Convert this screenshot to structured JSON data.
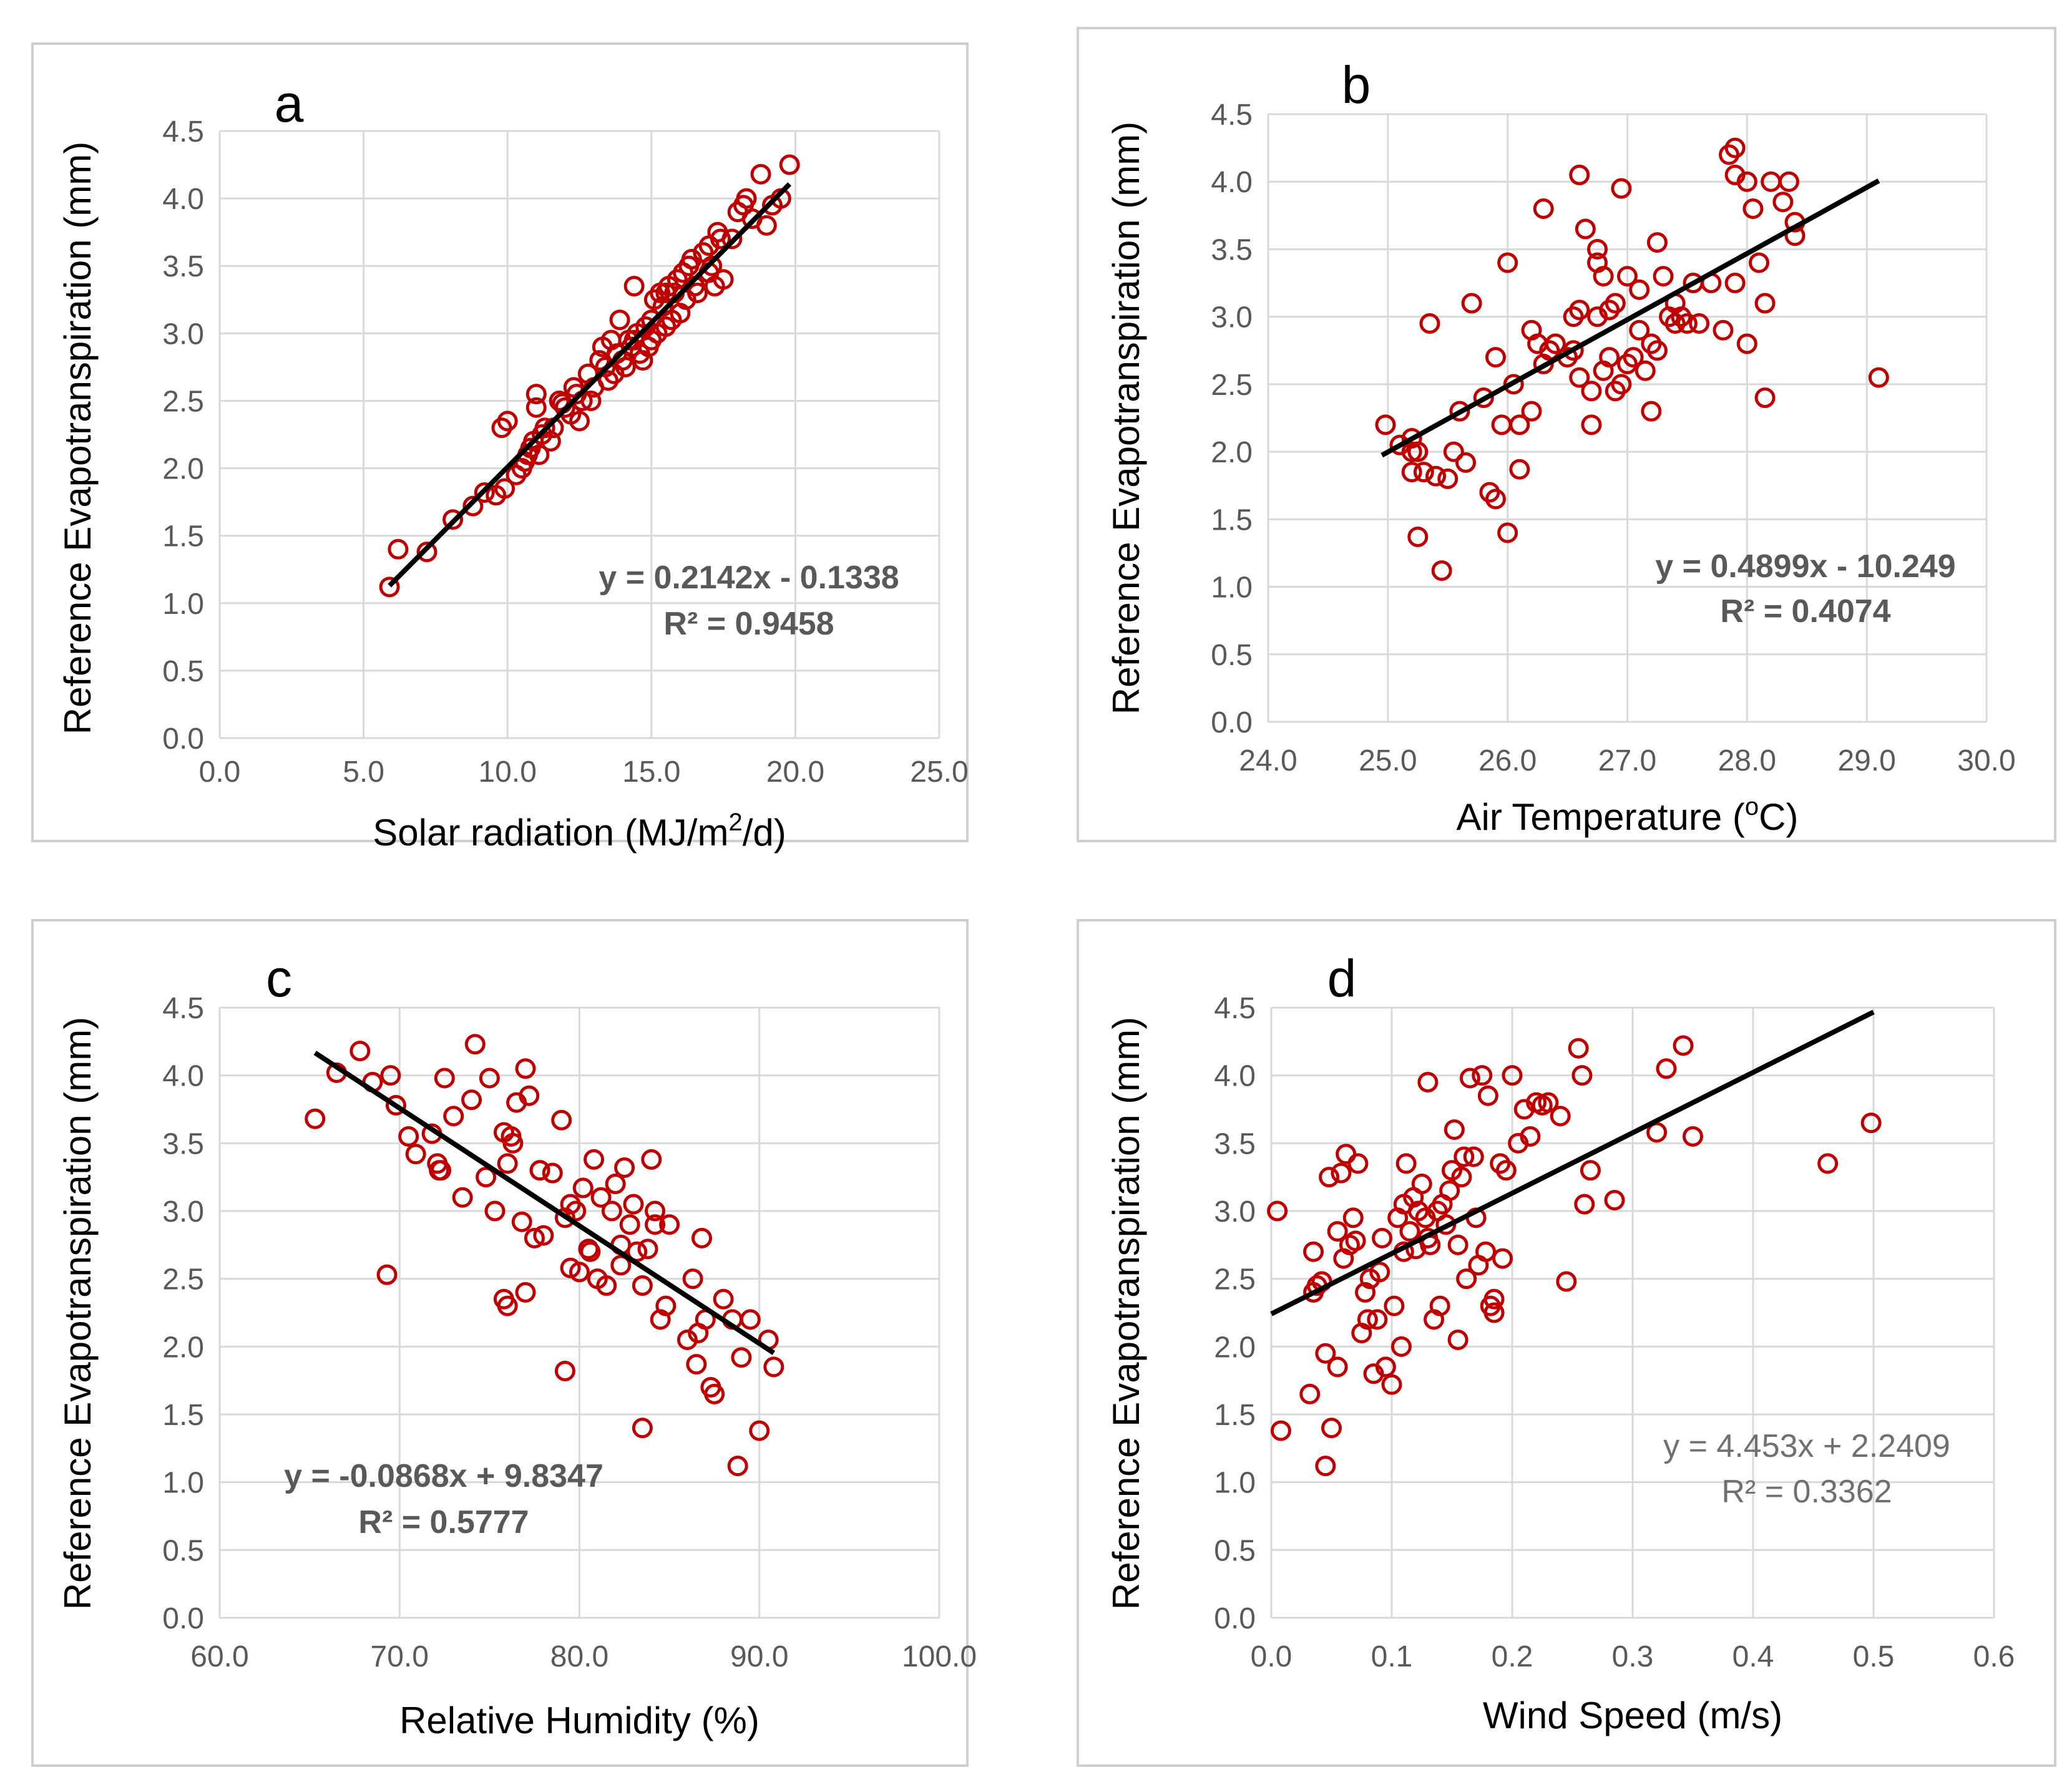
{
  "figure": {
    "accent_color": "#c00000",
    "trend_color": "#000000",
    "grid_color": "#d9d9d9"
  },
  "chart_data": [
    {
      "panel": "a",
      "type": "scatter",
      "title": "",
      "xlabel": "Solar radiation (MJ/m",
      "xlabel_sup": "2",
      "xlabel_post": "/d)",
      "ylabel": "Reference Evapotranspiration (mm)",
      "xlim": [
        0,
        25
      ],
      "ylim": [
        0,
        4.5
      ],
      "xticks": [
        "0.0",
        "5.0",
        "10.0",
        "15.0",
        "20.0",
        "25.0"
      ],
      "yticks": [
        "0.0",
        "0.5",
        "1.0",
        "1.5",
        "2.0",
        "2.5",
        "3.0",
        "3.5",
        "4.0",
        "4.5"
      ],
      "equation": "y = 0.2142x - 0.1338",
      "r2": "R² = 0.9458",
      "equation_bold": true,
      "trend": {
        "slope": 0.2142,
        "intercept": -0.1338,
        "x_range": [
          5.9,
          19.8
        ]
      },
      "x": [
        5.9,
        6.2,
        7.2,
        8.1,
        8.8,
        9.2,
        9.6,
        9.8,
        9.9,
        10.0,
        10.3,
        10.5,
        10.6,
        10.7,
        10.8,
        10.9,
        11.0,
        11.0,
        11.1,
        11.2,
        11.3,
        11.5,
        11.6,
        11.8,
        12.0,
        12.2,
        12.3,
        12.4,
        12.5,
        12.6,
        12.8,
        12.9,
        13.0,
        13.2,
        13.3,
        13.4,
        13.5,
        13.6,
        13.7,
        13.8,
        13.9,
        14.0,
        14.1,
        14.2,
        14.3,
        14.4,
        14.5,
        14.6,
        14.7,
        14.8,
        14.9,
        15.0,
        15.0,
        15.1,
        15.2,
        15.3,
        15.4,
        15.5,
        15.6,
        15.7,
        15.8,
        15.9,
        16.0,
        16.1,
        16.2,
        16.3,
        16.4,
        16.5,
        16.6,
        16.8,
        17.0,
        17.1,
        17.2,
        17.3,
        17.4,
        17.5,
        17.8,
        18.0,
        18.2,
        18.3,
        18.5,
        18.8,
        19.0,
        19.2,
        19.5,
        19.8,
        11.9,
        14.4,
        15.5,
        17.0
      ],
      "y": [
        1.12,
        1.4,
        1.38,
        1.62,
        1.72,
        1.82,
        1.8,
        2.3,
        1.85,
        2.35,
        1.95,
        2.0,
        2.05,
        2.1,
        2.15,
        2.2,
        2.45,
        2.55,
        2.1,
        2.25,
        2.3,
        2.2,
        2.3,
        2.5,
        2.45,
        2.4,
        2.6,
        2.55,
        2.35,
        2.5,
        2.7,
        2.5,
        2.6,
        2.8,
        2.9,
        2.75,
        2.65,
        2.95,
        2.7,
        2.85,
        3.1,
        2.8,
        2.75,
        2.95,
        2.9,
        3.35,
        3.0,
        2.85,
        2.8,
        3.05,
        2.9,
        3.1,
        2.95,
        3.25,
        3.0,
        3.3,
        3.2,
        3.05,
        3.35,
        3.1,
        3.3,
        3.4,
        3.15,
        3.45,
        3.25,
        3.5,
        3.55,
        3.35,
        3.3,
        3.6,
        3.45,
        3.5,
        3.35,
        3.75,
        3.7,
        3.4,
        3.7,
        3.9,
        3.95,
        4.0,
        3.85,
        4.18,
        3.8,
        3.95,
        4.0,
        4.25,
        2.48,
        2.95,
        3.3,
        3.65
      ]
    },
    {
      "panel": "b",
      "type": "scatter",
      "title": "",
      "xlabel": "Air Temperature (",
      "xlabel_sup": "o",
      "xlabel_post": "C)",
      "ylabel": "Reference Evapotranspiration (mm)",
      "xlim": [
        24,
        30
      ],
      "ylim": [
        0,
        4.5
      ],
      "xticks": [
        "24.0",
        "25.0",
        "26.0",
        "27.0",
        "28.0",
        "29.0",
        "30.0"
      ],
      "yticks": [
        "0.0",
        "0.5",
        "1.0",
        "1.5",
        "2.0",
        "2.5",
        "3.0",
        "3.5",
        "4.0",
        "4.5"
      ],
      "equation": "y = 0.4899x - 10.249",
      "r2": "R² = 0.4074",
      "equation_bold": true,
      "trend": {
        "slope": 0.4899,
        "intercept": -10.249,
        "x_range": [
          24.95,
          29.1
        ]
      },
      "x": [
        24.98,
        25.1,
        25.2,
        25.25,
        25.2,
        25.3,
        25.25,
        25.4,
        25.5,
        25.6,
        25.65,
        25.7,
        25.55,
        25.2,
        25.45,
        25.85,
        25.9,
        25.95,
        26.0,
        26.1,
        26.05,
        26.2,
        26.25,
        25.8,
        26.3,
        26.35,
        26.4,
        26.5,
        26.55,
        26.6,
        26.6,
        26.65,
        26.7,
        26.7,
        26.75,
        26.8,
        26.8,
        26.85,
        26.9,
        26.9,
        26.95,
        27.0,
        27.0,
        27.05,
        27.1,
        27.1,
        27.15,
        27.2,
        27.2,
        27.25,
        27.3,
        27.35,
        27.4,
        27.45,
        27.5,
        27.55,
        27.6,
        27.7,
        27.8,
        27.85,
        27.9,
        27.9,
        28.0,
        28.05,
        28.1,
        28.15,
        28.2,
        28.3,
        28.35,
        28.4,
        28.4,
        26.3,
        26.6,
        26.75,
        26.95,
        26.0,
        25.9,
        26.1,
        26.2,
        26.75,
        27.25,
        27.9,
        28.0,
        28.15,
        29.1,
        25.25,
        25.35,
        26.55,
        26.85,
        27.4
      ],
      "y": [
        2.2,
        2.05,
        2.1,
        2.0,
        1.85,
        1.85,
        1.37,
        1.82,
        1.8,
        2.3,
        1.92,
        3.1,
        2.0,
        2.0,
        1.12,
        1.7,
        1.65,
        2.2,
        1.4,
        2.2,
        2.5,
        2.3,
        2.8,
        2.4,
        2.65,
        2.75,
        2.8,
        2.7,
        3.0,
        3.05,
        2.55,
        3.65,
        2.2,
        2.45,
        3.0,
        2.6,
        3.3,
        2.7,
        3.1,
        2.45,
        2.5,
        2.65,
        3.3,
        2.7,
        2.9,
        3.2,
        2.6,
        2.3,
        2.8,
        3.55,
        3.3,
        3.0,
        3.1,
        3.0,
        2.95,
        3.25,
        2.95,
        3.25,
        2.9,
        4.2,
        4.25,
        4.05,
        4.0,
        3.8,
        3.4,
        3.1,
        4.0,
        3.85,
        4.0,
        3.7,
        3.6,
        3.8,
        4.05,
        3.4,
        3.95,
        3.4,
        2.7,
        1.87,
        2.9,
        3.5,
        2.75,
        3.25,
        2.8,
        2.4,
        2.55,
        2.0,
        2.95,
        2.75,
        3.05,
        2.95
      ]
    },
    {
      "panel": "c",
      "type": "scatter",
      "title": "",
      "xlabel": "Relative Humidity (%)",
      "xlabel_sup": "",
      "xlabel_post": "",
      "ylabel": "Reference Evapotranspiration (mm)",
      "xlim": [
        60,
        100
      ],
      "ylim": [
        0,
        4.5
      ],
      "xticks": [
        "60.0",
        "70.0",
        "80.0",
        "90.0",
        "100.0"
      ],
      "yticks": [
        "0.0",
        "0.5",
        "1.0",
        "1.5",
        "2.0",
        "2.5",
        "3.0",
        "3.5",
        "4.0",
        "4.5"
      ],
      "equation": "y = -0.0868x + 9.8347",
      "r2": "R² = 0.5777",
      "equation_bold": true,
      "trend": {
        "slope": -0.0868,
        "intercept": 9.8347,
        "x_range": [
          65.3,
          90.8
        ]
      },
      "x": [
        65.3,
        66.5,
        67.8,
        68.5,
        69.5,
        69.8,
        70.5,
        70.9,
        71.8,
        72.1,
        72.3,
        72.5,
        73.0,
        73.5,
        74.0,
        74.2,
        74.8,
        75.0,
        75.3,
        75.8,
        76.0,
        76.2,
        76.5,
        76.8,
        77.0,
        77.2,
        77.5,
        77.8,
        78.0,
        78.5,
        79.0,
        79.2,
        79.5,
        79.8,
        80.0,
        80.2,
        80.5,
        80.8,
        81.0,
        81.2,
        81.5,
        81.8,
        82.0,
        82.3,
        82.5,
        82.8,
        83.0,
        83.2,
        83.5,
        83.8,
        84.0,
        84.2,
        84.5,
        84.8,
        85.0,
        86.0,
        86.3,
        86.5,
        86.8,
        87.0,
        87.3,
        87.5,
        88.0,
        88.5,
        89.0,
        89.5,
        90.0,
        90.5,
        90.8,
        69.3,
        76.0,
        77.0,
        79.2,
        83.5,
        88.8,
        72.2,
        75.8,
        76.3,
        77.8,
        79.5,
        80.6,
        82.3,
        84.2,
        86.6
      ],
      "y": [
        3.68,
        4.02,
        4.18,
        3.95,
        4.0,
        3.78,
        3.55,
        3.42,
        3.57,
        3.35,
        3.3,
        3.98,
        3.7,
        3.1,
        3.82,
        4.23,
        3.25,
        3.98,
        3.0,
        3.58,
        3.35,
        3.55,
        3.8,
        2.92,
        4.05,
        3.85,
        2.8,
        3.3,
        2.82,
        3.28,
        3.67,
        2.95,
        3.05,
        3.0,
        2.55,
        3.17,
        2.72,
        3.38,
        2.5,
        3.1,
        2.45,
        3.0,
        3.2,
        2.75,
        3.32,
        2.9,
        3.05,
        2.7,
        2.45,
        2.72,
        3.38,
        3.0,
        2.2,
        2.3,
        2.9,
        2.05,
        2.5,
        1.87,
        2.8,
        2.2,
        1.7,
        1.65,
        2.35,
        2.2,
        1.92,
        2.2,
        1.38,
        2.05,
        1.85,
        2.53,
        2.3,
        2.4,
        1.82,
        1.4,
        1.12,
        3.3,
        2.35,
        3.5,
        3.3,
        2.58,
        2.7,
        2.6,
        2.9,
        2.1
      ]
    },
    {
      "panel": "d",
      "type": "scatter",
      "title": "",
      "xlabel": "Wind Speed (m/s)",
      "xlabel_sup": "",
      "xlabel_post": "",
      "ylabel": "Reference Evapotranspiration (mm)",
      "xlim": [
        0,
        0.6
      ],
      "ylim": [
        0,
        4.5
      ],
      "xticks": [
        "0.0",
        "0.1",
        "0.2",
        "0.3",
        "0.4",
        "0.5",
        "0.6"
      ],
      "yticks": [
        "0.0",
        "0.5",
        "1.0",
        "1.5",
        "2.0",
        "2.5",
        "3.0",
        "3.5",
        "4.0",
        "4.5"
      ],
      "equation": "y = 4.453x + 2.2409",
      "r2": "R² = 0.3362",
      "equation_bold": false,
      "trend": {
        "slope": 4.453,
        "intercept": 2.2409,
        "x_range": [
          0.0,
          0.5
        ]
      },
      "x": [
        0.005,
        0.008,
        0.032,
        0.035,
        0.038,
        0.042,
        0.045,
        0.045,
        0.05,
        0.055,
        0.055,
        0.058,
        0.06,
        0.062,
        0.065,
        0.068,
        0.07,
        0.072,
        0.075,
        0.078,
        0.08,
        0.082,
        0.085,
        0.088,
        0.09,
        0.092,
        0.095,
        0.1,
        0.102,
        0.105,
        0.108,
        0.11,
        0.112,
        0.115,
        0.118,
        0.12,
        0.122,
        0.125,
        0.128,
        0.13,
        0.132,
        0.135,
        0.138,
        0.14,
        0.142,
        0.145,
        0.148,
        0.15,
        0.152,
        0.155,
        0.158,
        0.16,
        0.162,
        0.165,
        0.168,
        0.17,
        0.172,
        0.175,
        0.178,
        0.18,
        0.182,
        0.185,
        0.19,
        0.192,
        0.195,
        0.2,
        0.205,
        0.21,
        0.215,
        0.22,
        0.225,
        0.23,
        0.24,
        0.245,
        0.255,
        0.258,
        0.26,
        0.265,
        0.285,
        0.32,
        0.328,
        0.342,
        0.35,
        0.462,
        0.498,
        0.035,
        0.048,
        0.11,
        0.13,
        0.155,
        0.185
      ],
      "y": [
        3.0,
        1.38,
        1.65,
        2.7,
        2.45,
        2.48,
        1.12,
        1.95,
        1.4,
        1.85,
        2.85,
        3.28,
        2.65,
        3.42,
        2.75,
        2.95,
        2.78,
        3.35,
        2.1,
        2.4,
        2.2,
        2.5,
        1.8,
        2.2,
        2.55,
        2.8,
        1.85,
        1.72,
        2.3,
        2.95,
        2.0,
        2.7,
        3.35,
        2.85,
        3.1,
        2.72,
        3.0,
        3.2,
        2.95,
        3.95,
        2.75,
        2.2,
        3.0,
        2.3,
        3.05,
        2.9,
        3.15,
        3.3,
        3.6,
        2.05,
        3.25,
        3.4,
        2.5,
        3.98,
        3.4,
        2.95,
        2.6,
        4.0,
        2.7,
        3.85,
        2.3,
        2.25,
        3.35,
        2.65,
        3.3,
        4.0,
        3.5,
        3.75,
        3.55,
        3.8,
        3.78,
        3.8,
        3.7,
        2.48,
        4.2,
        4.0,
        3.05,
        3.3,
        3.08,
        3.58,
        4.05,
        4.22,
        3.55,
        3.35,
        3.65,
        2.4,
        3.25,
        3.05,
        2.8,
        2.75,
        2.35
      ]
    }
  ]
}
